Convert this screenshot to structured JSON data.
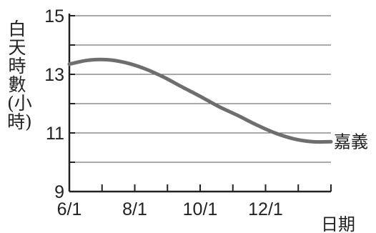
{
  "chart_data": {
    "type": "line",
    "ylabel": "白天時數(小時)",
    "xlabel": "日期",
    "ylim": [
      9,
      15
    ],
    "yticks": [
      "9",
      "11",
      "13",
      "15"
    ],
    "x_ticks": [
      "6/1",
      "8/1",
      "10/1",
      "12/1"
    ],
    "x": [
      "6/1",
      "6/15",
      "7/1",
      "7/15",
      "8/1",
      "8/15",
      "9/1",
      "9/15",
      "10/1",
      "10/15",
      "11/1",
      "11/15",
      "12/1",
      "12/15",
      "12/31"
    ],
    "series": [
      {
        "name": "嘉義",
        "color": "#6e6e6e",
        "values": [
          13.35,
          13.48,
          13.5,
          13.4,
          13.2,
          12.92,
          12.58,
          12.25,
          11.9,
          11.6,
          11.28,
          11.0,
          10.8,
          10.7,
          10.7
        ]
      }
    ],
    "grid": true,
    "legend": "label at line end (right)"
  }
}
